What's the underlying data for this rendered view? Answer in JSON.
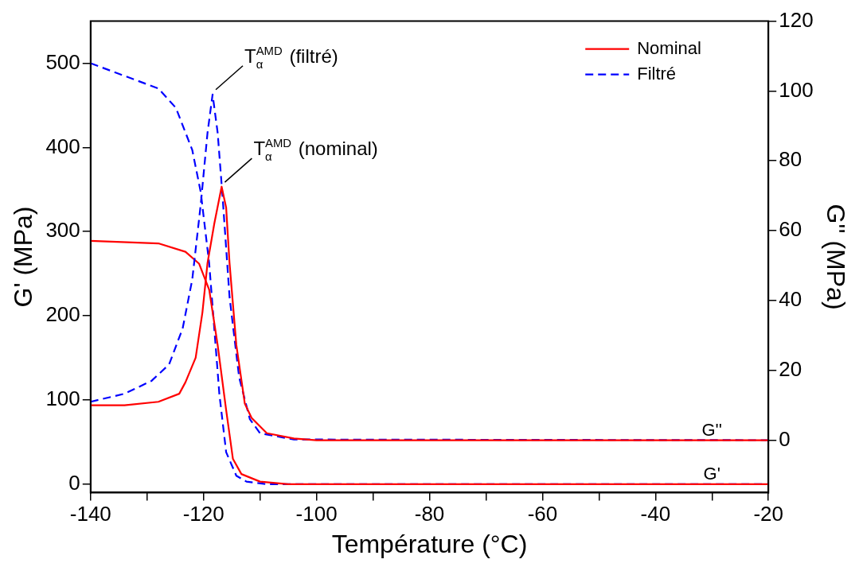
{
  "chart_data": {
    "type": "line",
    "xlabel": "Température (°C)",
    "ylabel": "G' (MPa)",
    "y2label": "G'' (MPa)",
    "xlim": [
      -140,
      -20
    ],
    "xticks": [
      -140,
      {
        "value": -130,
        "label": null
      },
      -120,
      {
        "value": -110,
        "label": null
      },
      -100,
      {
        "value": -90,
        "label": null
      },
      -80,
      {
        "value": -70,
        "label": null
      },
      -60,
      {
        "value": -50,
        "label": null
      },
      -40,
      {
        "value": -30,
        "label": null
      },
      -20
    ],
    "ylim": [
      -10,
      550
    ],
    "yticks": [
      0,
      100,
      200,
      300,
      400,
      500
    ],
    "y2lim": [
      -15,
      120
    ],
    "y2ticks": [
      0,
      20,
      40,
      60,
      80,
      100,
      120
    ],
    "grid": false,
    "legend": "top right",
    "marker": "none",
    "series": [
      {
        "name": "Nominal",
        "color": "#ff0000",
        "line_style": "solid",
        "axis": "y2",
        "x": [
          -140,
          -134,
          -128,
          -124.3,
          -123.2,
          -121.4,
          -120.2,
          -119.3,
          -118.1,
          -116.8,
          -116,
          -115.4,
          -114.2,
          -112.7,
          -111.5,
          -108.8,
          -104,
          -100,
          -20
        ],
        "values": [
          10,
          10,
          11,
          13.3,
          16.6,
          23.6,
          36.6,
          50.7,
          62,
          72.6,
          66.6,
          50.7,
          27.3,
          10.5,
          6.4,
          2,
          0.5,
          0,
          0
        ]
      },
      {
        "name": "Filtré",
        "color": "#0000ff",
        "line_style": "dashed",
        "axis": "y2",
        "x": [
          -140,
          -134,
          -129.2,
          -126.1,
          -123.7,
          -122,
          -120.5,
          -119.3,
          -118.4,
          -117.5,
          -116.6,
          -115.4,
          -113.7,
          -111.8,
          -110,
          -104,
          -20
        ],
        "values": [
          11,
          13.3,
          17,
          21.7,
          32,
          46,
          67.5,
          88,
          99,
          88,
          69,
          41,
          18,
          6,
          2,
          0.2,
          0
        ]
      },
      {
        "color": "#ff0000",
        "line_style": "solid",
        "axis": "y",
        "x": [
          -140,
          -128,
          -123.2,
          -120.8,
          -119,
          -117.5,
          -116,
          -114.8,
          -113.3,
          -110,
          -105,
          -20
        ],
        "values": [
          289,
          286,
          276,
          262,
          231,
          165,
          88,
          30,
          12,
          3,
          0,
          0
        ]
      },
      {
        "color": "#0000ff",
        "line_style": "dashed",
        "axis": "y",
        "x": [
          -140,
          -128,
          -124.9,
          -122,
          -120.5,
          -119,
          -118.1,
          -117.2,
          -116,
          -114.2,
          -112.4,
          -108.8,
          -20
        ],
        "values": [
          500,
          470,
          447,
          397,
          347,
          262,
          185,
          107,
          38,
          10,
          3,
          0,
          0
        ]
      }
    ],
    "annotations": [
      {
        "text": "T$_{α}$$^{AMD}$ (filtré)",
        "x": -118.4,
        "y": 463
      },
      {
        "text": "T$_{α}$$^{AMD}$ (nominal)",
        "x": -116.8,
        "y": 353
      },
      "G''",
      "G'"
    ]
  }
}
